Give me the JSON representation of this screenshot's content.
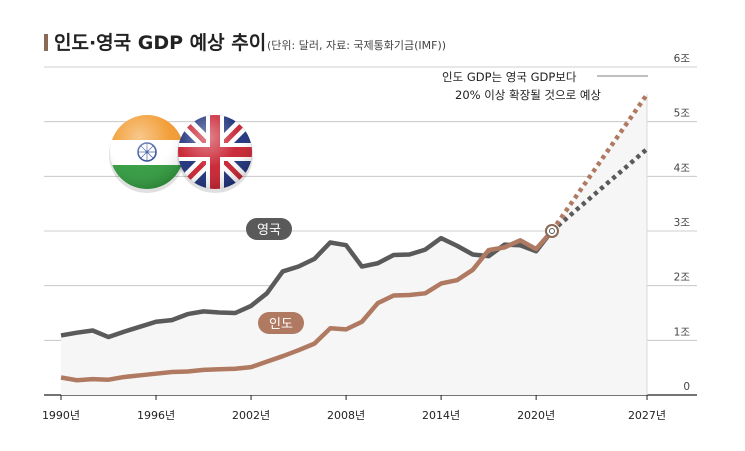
{
  "header": {
    "title": "인도·영국 GDP 예상 추이",
    "unit_note": "(단위: 달러, 자료: 국제통화기금(IMF))"
  },
  "annotation": {
    "line1": "인도 GDP는 영국 GDP보다",
    "line2": "20% 이상 확장될 것으로 예상"
  },
  "colors": {
    "uk": "#5a5a5a",
    "india": "#b07a62",
    "accent": "#8a6a55",
    "area_fill": "#f6f6f6"
  },
  "icons": [
    "india-flag-icon",
    "uk-flag-icon"
  ],
  "chart_data": {
    "type": "line",
    "title": "인도·영국 GDP 예상 추이",
    "unit": "(단위: 달러, 자료: 국제통화기금(IMF))",
    "x_tick_labels": [
      "1990년",
      "1996년",
      "2002년",
      "2008년",
      "2014년",
      "2020년",
      "2027년"
    ],
    "x_ticks": [
      1990,
      1996,
      2002,
      2008,
      2014,
      2020,
      2027
    ],
    "y_tick_labels": [
      "0",
      "1조",
      "2조",
      "3조",
      "4조",
      "5조",
      "6조"
    ],
    "y_ticks": [
      0,
      1,
      2,
      3,
      4,
      5,
      6
    ],
    "xlim": [
      1990,
      2027
    ],
    "ylim": [
      0,
      6
    ],
    "ylabel": "조 달러",
    "series": [
      {
        "name": "영국",
        "label": "영국",
        "x": [
          1990,
          1991,
          1992,
          1993,
          1994,
          1995,
          1996,
          1997,
          1998,
          1999,
          2000,
          2001,
          2002,
          2003,
          2004,
          2005,
          2006,
          2007,
          2008,
          2009,
          2010,
          2011,
          2012,
          2013,
          2014,
          2015,
          2016,
          2017,
          2018,
          2019,
          2020,
          2021
        ],
        "values": [
          1.09,
          1.14,
          1.18,
          1.06,
          1.16,
          1.25,
          1.34,
          1.37,
          1.48,
          1.53,
          1.51,
          1.5,
          1.63,
          1.86,
          2.26,
          2.35,
          2.49,
          2.79,
          2.74,
          2.35,
          2.41,
          2.56,
          2.57,
          2.66,
          2.87,
          2.73,
          2.57,
          2.54,
          2.75,
          2.74,
          2.63,
          3.0
        ]
      },
      {
        "name": "인도",
        "label": "인도",
        "x": [
          1990,
          1991,
          1992,
          1993,
          1994,
          1995,
          1996,
          1997,
          1998,
          1999,
          2000,
          2001,
          2002,
          2003,
          2004,
          2005,
          2006,
          2007,
          2008,
          2009,
          2010,
          2011,
          2012,
          2013,
          2014,
          2015,
          2016,
          2017,
          2018,
          2019,
          2020,
          2021
        ],
        "values": [
          0.32,
          0.27,
          0.29,
          0.28,
          0.33,
          0.36,
          0.39,
          0.42,
          0.43,
          0.46,
          0.47,
          0.48,
          0.51,
          0.61,
          0.71,
          0.82,
          0.94,
          1.22,
          1.2,
          1.34,
          1.68,
          1.82,
          1.83,
          1.86,
          2.04,
          2.1,
          2.29,
          2.65,
          2.7,
          2.83,
          2.67,
          3.0
        ]
      },
      {
        "name": "영국 (전망)",
        "style": "dotted",
        "x": [
          2021,
          2027
        ],
        "values": [
          3.0,
          4.5
        ]
      },
      {
        "name": "인도 (전망)",
        "style": "dotted",
        "x": [
          2021,
          2027
        ],
        "values": [
          3.0,
          5.5
        ]
      }
    ],
    "legend": [
      {
        "name": "영국",
        "label": "영국"
      },
      {
        "name": "인도",
        "label": "인도"
      }
    ]
  }
}
